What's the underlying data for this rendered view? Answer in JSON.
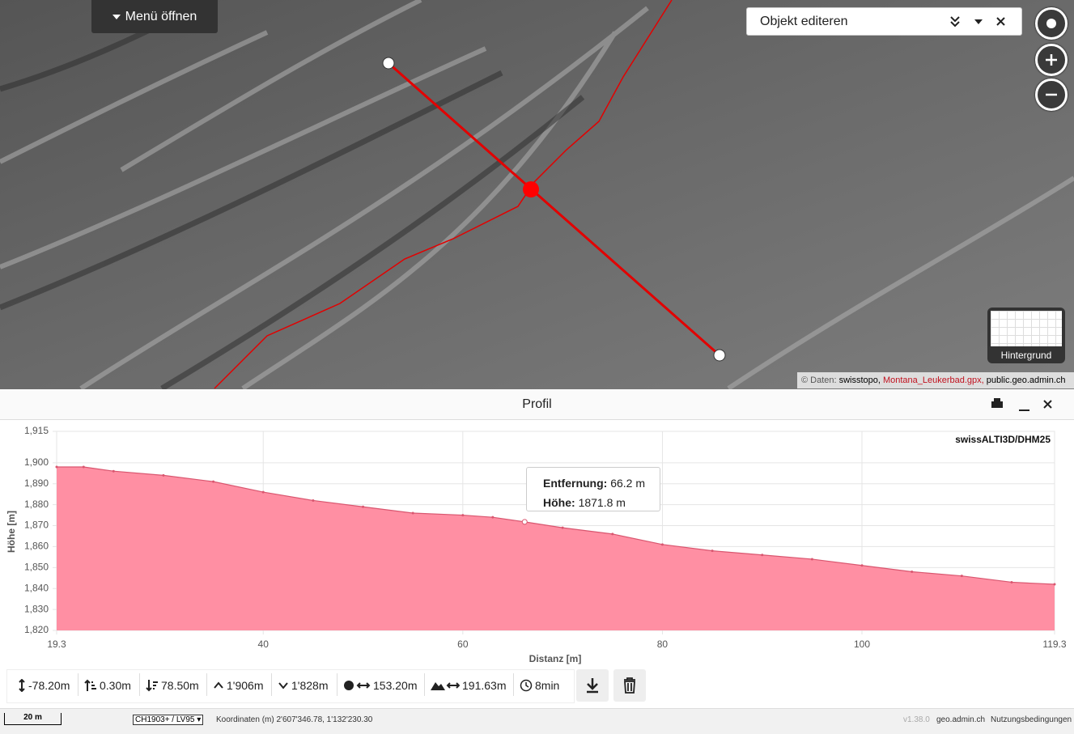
{
  "menu": {
    "button": "Menü öffnen"
  },
  "edit_panel": {
    "title": "Objekt editeren"
  },
  "background": {
    "label": "Hintergrund"
  },
  "attribution": {
    "prefix": "© Daten:",
    "sources": [
      "swisstopo,",
      "Montana_Leukerbad.gpx,",
      "public.geo.admin.ch"
    ]
  },
  "profile": {
    "title": "Profil",
    "chart_data": {
      "type": "area",
      "title": "swissALTI3D/DHM25",
      "x_label": "Distanz [m]",
      "y_label": "Höhe [m]",
      "x": [
        19.3,
        22,
        25,
        30,
        35,
        40,
        45,
        50,
        55,
        60,
        63,
        66.2,
        70,
        75,
        80,
        85,
        90,
        95,
        100,
        105,
        110,
        115,
        119.3
      ],
      "values": [
        1898,
        1898,
        1896,
        1894,
        1891,
        1886,
        1882,
        1879,
        1876,
        1875,
        1874,
        1871.8,
        1869,
        1866,
        1861,
        1858,
        1856,
        1854,
        1851,
        1848,
        1846,
        1843,
        1842
      ],
      "color": "#ff8fa3",
      "xlim": [
        19.3,
        119.3
      ],
      "xticks": [
        19.3,
        40,
        60,
        80,
        100,
        119.3
      ],
      "ylim": [
        1820,
        1915
      ],
      "yticks": [
        {
          "value": 1820,
          "label": "1,820"
        },
        {
          "value": 1830,
          "label": "1,830"
        },
        {
          "value": 1840,
          "label": "1,840"
        },
        {
          "value": 1850,
          "label": "1,850"
        },
        {
          "value": 1860,
          "label": "1,860"
        },
        {
          "value": 1870,
          "label": "1,870"
        },
        {
          "value": 1880,
          "label": "1,880"
        },
        {
          "value": 1890,
          "label": "1,890"
        },
        {
          "value": 1900,
          "label": "1,900"
        },
        {
          "value": 1915,
          "label": "1,915"
        }
      ],
      "grid": true,
      "tooltip": {
        "x": 66.2,
        "y": 1871.8,
        "distance_label": "Entfernung:",
        "distance": "66.2 m",
        "height_label": "Höhe:",
        "height": "1871.8 m"
      }
    }
  },
  "stats": [
    "-78.20m",
    "0.30m",
    "78.50m",
    "1'906m",
    "1'828m",
    "153.20m",
    "191.63m",
    "8min"
  ],
  "footer": {
    "scale": "20 m",
    "projection": "CH1903+ / LV95",
    "coordinates": "Koordinaten (m) 2'607'346.78, 1'132'230.30",
    "version": "v1.38.0",
    "links": [
      "geo.admin.ch",
      "Nutzungsbedingungen"
    ]
  }
}
